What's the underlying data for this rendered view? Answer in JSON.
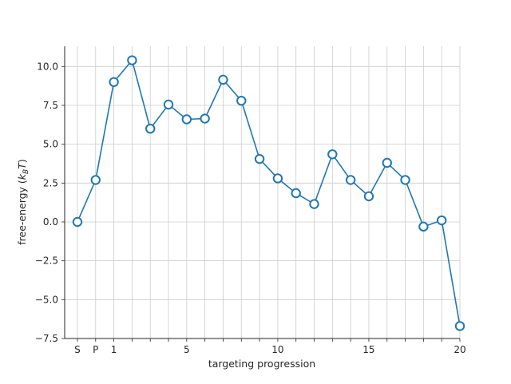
{
  "chart_data": {
    "type": "line",
    "title": "",
    "xlabel": "targeting progression",
    "ylabel_main": "free-energy (",
    "ylabel_k": "k",
    "ylabel_sub": "B",
    "ylabel_t": "T",
    "ylabel_close": ")",
    "xlim": [
      -0.7,
      21.0
    ],
    "ylim": [
      -7.5,
      11.3
    ],
    "x_ticks": [
      {
        "x": 0,
        "label": "S"
      },
      {
        "x": 1,
        "label": "P"
      },
      {
        "x": 2,
        "label": "1"
      },
      {
        "x": 3,
        "label": ""
      },
      {
        "x": 4,
        "label": ""
      },
      {
        "x": 5,
        "label": ""
      },
      {
        "x": 6,
        "label": "5"
      },
      {
        "x": 7,
        "label": ""
      },
      {
        "x": 8,
        "label": ""
      },
      {
        "x": 9,
        "label": ""
      },
      {
        "x": 10,
        "label": ""
      },
      {
        "x": 11,
        "label": "10"
      },
      {
        "x": 12,
        "label": ""
      },
      {
        "x": 13,
        "label": ""
      },
      {
        "x": 14,
        "label": ""
      },
      {
        "x": 15,
        "label": ""
      },
      {
        "x": 16,
        "label": "15"
      },
      {
        "x": 17,
        "label": ""
      },
      {
        "x": 18,
        "label": ""
      },
      {
        "x": 19,
        "label": ""
      },
      {
        "x": 20,
        "label": ""
      },
      {
        "x": 21,
        "label": "20"
      }
    ],
    "y_ticks": [
      {
        "y": 10.0,
        "label": "10.0"
      },
      {
        "y": 7.5,
        "label": "7.5"
      },
      {
        "y": 5.0,
        "label": "5.0"
      },
      {
        "y": 2.5,
        "label": "2.5"
      },
      {
        "y": 0.0,
        "label": "0.0"
      },
      {
        "y": -2.5,
        "label": "−2.5"
      },
      {
        "y": -5.0,
        "label": "−5.0"
      },
      {
        "y": -7.5,
        "label": "−7.5"
      }
    ],
    "grid": true,
    "series": [
      {
        "color": "#1f77b4",
        "marker": "open-circle",
        "x": [
          0,
          1,
          2,
          3,
          4,
          5,
          6,
          7,
          8,
          9,
          10,
          11,
          12,
          13,
          14,
          15,
          16,
          17,
          18,
          19,
          20,
          21
        ],
        "y": [
          0.0,
          2.7,
          9.0,
          10.4,
          6.0,
          7.55,
          6.6,
          6.65,
          9.15,
          7.8,
          4.05,
          2.8,
          1.85,
          1.15,
          4.35,
          2.7,
          1.65,
          3.8,
          2.7,
          -0.3,
          0.1,
          -6.7
        ]
      }
    ]
  }
}
